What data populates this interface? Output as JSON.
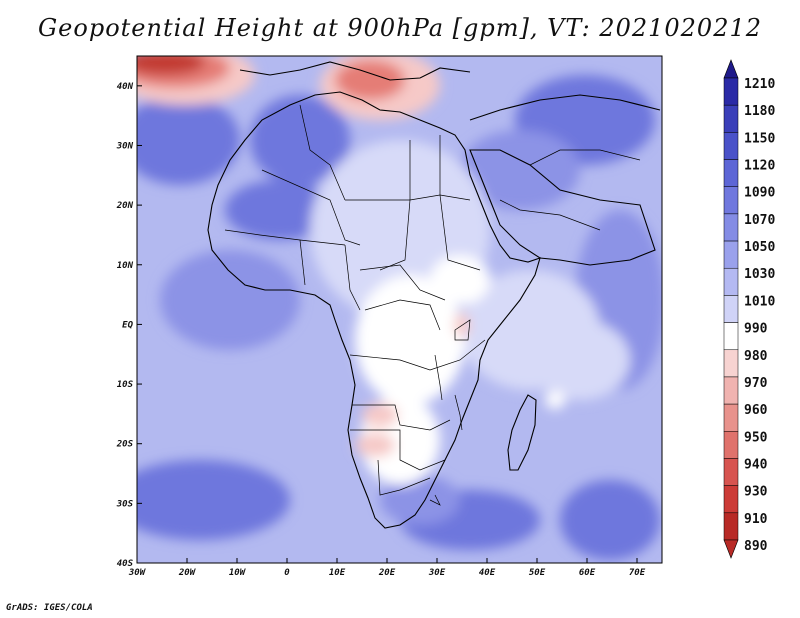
{
  "title": "Geopotential Height at 900hPa [gpm], VT: 2021020212",
  "credit": "GrADS: IGES/COLA",
  "map": {
    "region": "Africa",
    "lon_range": [
      -30,
      75
    ],
    "lat_range": [
      -40,
      45
    ],
    "lon_ticks": [
      "30W",
      "20W",
      "10W",
      "0",
      "10E",
      "20E",
      "30E",
      "40E",
      "50E",
      "60E",
      "70E"
    ],
    "lat_ticks": [
      "40N",
      "30N",
      "20N",
      "10N",
      "EQ",
      "10S",
      "20S",
      "30S",
      "40S"
    ],
    "fills": {
      "ocean_base": "#b3b9f0",
      "mid_blue": "#8c93e6",
      "deep_blue": "#6e77dd",
      "pale_blue": "#d7daf8",
      "white": "#ffffff",
      "pink": "#f6c9c7",
      "red": "#e57d76",
      "dark_red": "#c23a33"
    }
  },
  "colorbar": {
    "levels": [
      "1210",
      "1180",
      "1150",
      "1120",
      "1090",
      "1070",
      "1050",
      "1030",
      "1010",
      "990",
      "980",
      "970",
      "960",
      "950",
      "940",
      "930",
      "910",
      "890"
    ],
    "colors": [
      "#1f1a8a",
      "#2a2aa6",
      "#3a3fb9",
      "#4a52c9",
      "#5d66d6",
      "#7078de",
      "#848ce5",
      "#9aa1ec",
      "#b4b9f2",
      "#d0d3f7",
      "#ffffff",
      "#f7d3d1",
      "#f0b3b0",
      "#e8928c",
      "#e0726c",
      "#d75450",
      "#cc3b37",
      "#b82a26"
    ]
  }
}
